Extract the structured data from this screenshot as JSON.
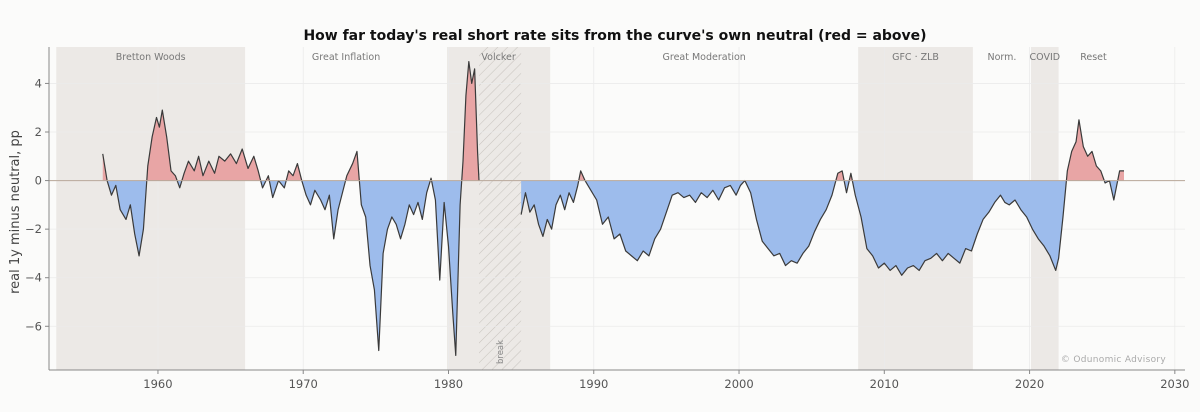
{
  "chart_data": {
    "type": "area",
    "title": "How far today's real short rate sits from the curve's own neutral (red = above)",
    "ylabel": "real 1y minus neutral, pp",
    "xlabel": "",
    "xlim": [
      1952.5,
      2030.7
    ],
    "ylim": [
      -7.8,
      5.5
    ],
    "x_ticks": [
      1960,
      1970,
      1980,
      1990,
      2000,
      2010,
      2020,
      2030
    ],
    "y_ticks": [
      4,
      2,
      0,
      -2,
      -4,
      -6
    ],
    "colors": {
      "above": "#e8a5a5",
      "below": "#9dbcec",
      "line": "#3a3a3a",
      "era_shade": "#ece9e6",
      "zero_line": "#b9a89a"
    },
    "eras": [
      {
        "label": "Bretton Woods",
        "start": 1953.0,
        "end": 1966.0,
        "shaded": true
      },
      {
        "label": "Great Inflation",
        "start": 1966.0,
        "end": 1979.9,
        "shaded": false
      },
      {
        "label": "Volcker",
        "start": 1979.9,
        "end": 1987.0,
        "shaded": true
      },
      {
        "label": "Great Moderation",
        "start": 1987.0,
        "end": 2008.2,
        "shaded": false
      },
      {
        "label": "GFC · ZLB",
        "start": 2008.2,
        "end": 2016.1,
        "shaded": true
      },
      {
        "label": "Norm.",
        "start": 2016.1,
        "end": 2020.1,
        "shaded": false
      },
      {
        "label": "COVID",
        "start": 2020.1,
        "end": 2022.0,
        "shaded": true
      },
      {
        "label": "Reset",
        "start": 2022.0,
        "end": 2026.8,
        "shaded": false
      }
    ],
    "gap": {
      "label": "break",
      "start": 1982.1,
      "end": 1985.0
    },
    "series": [
      {
        "points": [
          [
            1956.2,
            1.1
          ],
          [
            1956.5,
            0.0
          ],
          [
            1956.8,
            -0.6
          ],
          [
            1957.1,
            -0.2
          ],
          [
            1957.4,
            -1.2
          ],
          [
            1957.8,
            -1.6
          ],
          [
            1958.1,
            -1.0
          ],
          [
            1958.4,
            -2.2
          ],
          [
            1958.7,
            -3.1
          ],
          [
            1959.0,
            -2.0
          ],
          [
            1959.3,
            0.6
          ],
          [
            1959.6,
            1.8
          ],
          [
            1959.9,
            2.6
          ],
          [
            1960.1,
            2.2
          ],
          [
            1960.3,
            2.9
          ],
          [
            1960.6,
            1.8
          ],
          [
            1960.9,
            0.4
          ],
          [
            1961.2,
            0.2
          ],
          [
            1961.5,
            -0.3
          ],
          [
            1961.8,
            0.3
          ],
          [
            1962.1,
            0.8
          ],
          [
            1962.5,
            0.4
          ],
          [
            1962.8,
            1.0
          ],
          [
            1963.1,
            0.2
          ],
          [
            1963.5,
            0.8
          ],
          [
            1963.9,
            0.3
          ],
          [
            1964.2,
            1.0
          ],
          [
            1964.6,
            0.8
          ],
          [
            1965.0,
            1.1
          ],
          [
            1965.4,
            0.7
          ],
          [
            1965.8,
            1.3
          ],
          [
            1966.2,
            0.5
          ],
          [
            1966.6,
            1.0
          ],
          [
            1966.9,
            0.4
          ],
          [
            1967.2,
            -0.3
          ],
          [
            1967.6,
            0.2
          ],
          [
            1967.9,
            -0.7
          ],
          [
            1968.3,
            0.0
          ],
          [
            1968.7,
            -0.3
          ],
          [
            1969.0,
            0.4
          ],
          [
            1969.3,
            0.2
          ],
          [
            1969.6,
            0.7
          ],
          [
            1969.9,
            0.0
          ],
          [
            1970.2,
            -0.6
          ],
          [
            1970.5,
            -1.0
          ],
          [
            1970.8,
            -0.4
          ],
          [
            1971.2,
            -0.8
          ],
          [
            1971.5,
            -1.2
          ],
          [
            1971.8,
            -0.6
          ],
          [
            1972.1,
            -2.4
          ],
          [
            1972.4,
            -1.2
          ],
          [
            1972.7,
            -0.5
          ],
          [
            1973.0,
            0.2
          ],
          [
            1973.4,
            0.7
          ],
          [
            1973.7,
            1.2
          ],
          [
            1974.0,
            -1.0
          ],
          [
            1974.3,
            -1.5
          ],
          [
            1974.6,
            -3.5
          ],
          [
            1974.9,
            -4.5
          ],
          [
            1975.2,
            -7.0
          ],
          [
            1975.5,
            -3.0
          ],
          [
            1975.8,
            -2.0
          ],
          [
            1976.1,
            -1.5
          ],
          [
            1976.4,
            -1.8
          ],
          [
            1976.7,
            -2.4
          ],
          [
            1977.0,
            -1.8
          ],
          [
            1977.3,
            -1.0
          ],
          [
            1977.6,
            -1.4
          ],
          [
            1977.9,
            -0.9
          ],
          [
            1978.2,
            -1.6
          ],
          [
            1978.5,
            -0.5
          ],
          [
            1978.8,
            0.1
          ],
          [
            1979.1,
            -0.8
          ],
          [
            1979.4,
            -4.1
          ],
          [
            1979.7,
            -0.9
          ],
          [
            1980.0,
            -2.7
          ],
          [
            1980.3,
            -5.5
          ],
          [
            1980.5,
            -7.2
          ],
          [
            1980.8,
            -1.0
          ],
          [
            1981.0,
            0.8
          ],
          [
            1981.2,
            3.5
          ],
          [
            1981.4,
            4.9
          ],
          [
            1981.6,
            4.0
          ],
          [
            1981.8,
            4.6
          ],
          [
            1982.0,
            1.2
          ],
          [
            1982.1,
            0.0
          ],
          [
            1985.0,
            -1.4
          ],
          [
            1985.3,
            -0.5
          ],
          [
            1985.6,
            -1.3
          ],
          [
            1985.9,
            -1.0
          ],
          [
            1986.2,
            -1.8
          ],
          [
            1986.5,
            -2.3
          ],
          [
            1986.8,
            -1.6
          ],
          [
            1987.1,
            -2.0
          ],
          [
            1987.4,
            -1.0
          ],
          [
            1987.7,
            -0.6
          ],
          [
            1988.0,
            -1.2
          ],
          [
            1988.3,
            -0.5
          ],
          [
            1988.6,
            -0.9
          ],
          [
            1988.9,
            -0.2
          ],
          [
            1989.1,
            0.4
          ],
          [
            1989.4,
            0.0
          ],
          [
            1989.8,
            -0.4
          ],
          [
            1990.2,
            -0.8
          ],
          [
            1990.6,
            -1.8
          ],
          [
            1991.0,
            -1.5
          ],
          [
            1991.4,
            -2.4
          ],
          [
            1991.8,
            -2.2
          ],
          [
            1992.2,
            -2.9
          ],
          [
            1992.6,
            -3.1
          ],
          [
            1993.0,
            -3.3
          ],
          [
            1993.4,
            -2.9
          ],
          [
            1993.8,
            -3.1
          ],
          [
            1994.2,
            -2.4
          ],
          [
            1994.6,
            -2.0
          ],
          [
            1995.0,
            -1.3
          ],
          [
            1995.4,
            -0.6
          ],
          [
            1995.8,
            -0.5
          ],
          [
            1996.2,
            -0.7
          ],
          [
            1996.6,
            -0.6
          ],
          [
            1997.0,
            -0.9
          ],
          [
            1997.4,
            -0.5
          ],
          [
            1997.8,
            -0.7
          ],
          [
            1998.2,
            -0.4
          ],
          [
            1998.6,
            -0.8
          ],
          [
            1999.0,
            -0.3
          ],
          [
            1999.4,
            -0.2
          ],
          [
            1999.8,
            -0.6
          ],
          [
            2000.1,
            -0.2
          ],
          [
            2000.4,
            0.0
          ],
          [
            2000.8,
            -0.5
          ],
          [
            2001.2,
            -1.6
          ],
          [
            2001.6,
            -2.5
          ],
          [
            2002.0,
            -2.8
          ],
          [
            2002.4,
            -3.1
          ],
          [
            2002.8,
            -3.0
          ],
          [
            2003.2,
            -3.5
          ],
          [
            2003.6,
            -3.3
          ],
          [
            2004.0,
            -3.4
          ],
          [
            2004.4,
            -3.0
          ],
          [
            2004.8,
            -2.7
          ],
          [
            2005.2,
            -2.1
          ],
          [
            2005.6,
            -1.6
          ],
          [
            2006.0,
            -1.2
          ],
          [
            2006.4,
            -0.6
          ],
          [
            2006.8,
            0.3
          ],
          [
            2007.1,
            0.4
          ],
          [
            2007.4,
            -0.5
          ],
          [
            2007.7,
            0.3
          ],
          [
            2008.0,
            -0.6
          ],
          [
            2008.4,
            -1.5
          ],
          [
            2008.8,
            -2.8
          ],
          [
            2009.2,
            -3.1
          ],
          [
            2009.6,
            -3.6
          ],
          [
            2010.0,
            -3.4
          ],
          [
            2010.4,
            -3.7
          ],
          [
            2010.8,
            -3.5
          ],
          [
            2011.2,
            -3.9
          ],
          [
            2011.6,
            -3.6
          ],
          [
            2012.0,
            -3.5
          ],
          [
            2012.4,
            -3.7
          ],
          [
            2012.8,
            -3.3
          ],
          [
            2013.2,
            -3.2
          ],
          [
            2013.6,
            -3.0
          ],
          [
            2014.0,
            -3.3
          ],
          [
            2014.4,
            -3.0
          ],
          [
            2014.8,
            -3.2
          ],
          [
            2015.2,
            -3.4
          ],
          [
            2015.6,
            -2.8
          ],
          [
            2016.0,
            -2.9
          ],
          [
            2016.4,
            -2.2
          ],
          [
            2016.8,
            -1.6
          ],
          [
            2017.2,
            -1.3
          ],
          [
            2017.6,
            -0.9
          ],
          [
            2018.0,
            -0.6
          ],
          [
            2018.3,
            -0.9
          ],
          [
            2018.6,
            -1.0
          ],
          [
            2019.0,
            -0.8
          ],
          [
            2019.4,
            -1.2
          ],
          [
            2019.8,
            -1.5
          ],
          [
            2020.2,
            -2.0
          ],
          [
            2020.6,
            -2.4
          ],
          [
            2021.0,
            -2.7
          ],
          [
            2021.4,
            -3.1
          ],
          [
            2021.8,
            -3.7
          ],
          [
            2022.0,
            -3.2
          ],
          [
            2022.3,
            -1.5
          ],
          [
            2022.6,
            0.4
          ],
          [
            2022.9,
            1.2
          ],
          [
            2023.2,
            1.6
          ],
          [
            2023.4,
            2.5
          ],
          [
            2023.7,
            1.4
          ],
          [
            2024.0,
            1.0
          ],
          [
            2024.3,
            1.2
          ],
          [
            2024.6,
            0.6
          ],
          [
            2024.9,
            0.4
          ],
          [
            2025.2,
            -0.1
          ],
          [
            2025.5,
            0.0
          ],
          [
            2025.8,
            -0.8
          ],
          [
            2026.0,
            -0.2
          ],
          [
            2026.2,
            0.4
          ],
          [
            2026.5,
            0.4
          ]
        ]
      }
    ],
    "annotations": [
      "© Odunomic Advisory"
    ]
  }
}
